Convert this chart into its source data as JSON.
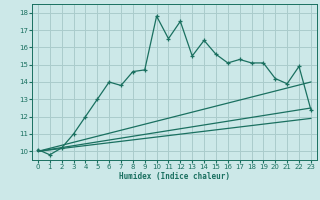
{
  "xlabel": "Humidex (Indice chaleur)",
  "bg_color": "#cce8e8",
  "line_color": "#1a7060",
  "grid_color": "#aacccc",
  "xlim": [
    -0.5,
    23.5
  ],
  "ylim": [
    9.5,
    18.5
  ],
  "xticks": [
    0,
    1,
    2,
    3,
    4,
    5,
    6,
    7,
    8,
    9,
    10,
    11,
    12,
    13,
    14,
    15,
    16,
    17,
    18,
    19,
    20,
    21,
    22,
    23
  ],
  "yticks": [
    10,
    11,
    12,
    13,
    14,
    15,
    16,
    17,
    18
  ],
  "series1_x": [
    0,
    1,
    2,
    3,
    4,
    5,
    6,
    7,
    8,
    9,
    10,
    11,
    12,
    13,
    14,
    15,
    16,
    17,
    18,
    19,
    20,
    21,
    22,
    23
  ],
  "series1_y": [
    10.1,
    9.8,
    10.2,
    11.0,
    12.0,
    13.0,
    14.0,
    13.8,
    14.6,
    14.7,
    17.8,
    16.5,
    17.5,
    15.5,
    16.4,
    15.6,
    15.1,
    15.3,
    15.1,
    15.1,
    14.2,
    13.9,
    14.9,
    12.4
  ],
  "series2_x": [
    0,
    23
  ],
  "series2_y": [
    10.0,
    14.0
  ],
  "series3_x": [
    0,
    23
  ],
  "series3_y": [
    10.0,
    12.5
  ],
  "series4_x": [
    0,
    23
  ],
  "series4_y": [
    10.0,
    11.9
  ]
}
